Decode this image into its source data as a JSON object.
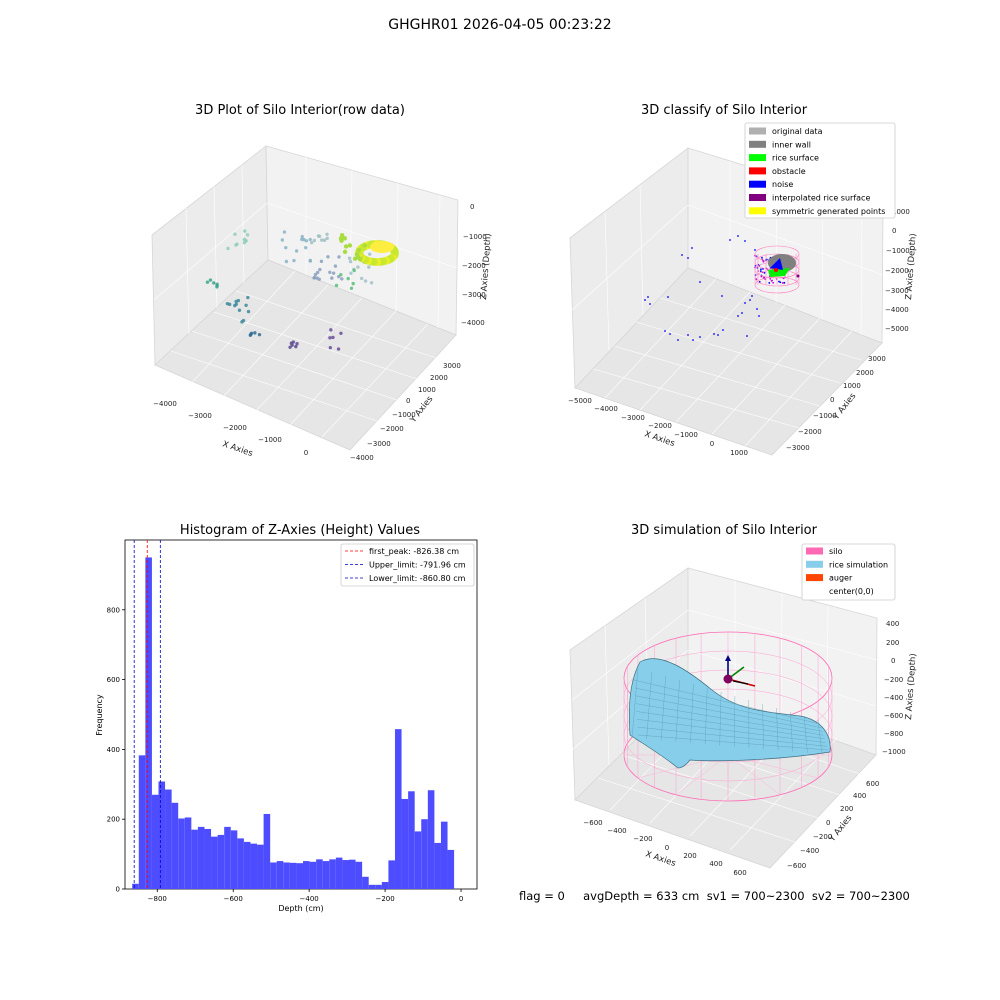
{
  "suptitle": "GHGHR01 2026-04-05 00:23:22",
  "footer": "flag = 0     avgDepth = 633 cm  sv1 = 700~2300  sv2 = 700~2300",
  "panels": {
    "raw": {
      "title": "3D Plot of Silo Interior(row data)",
      "x_label": "X Axies",
      "y_label": "Y Axies",
      "z_label": "Z Axies (Depth)",
      "x_ticks": [
        "−4000",
        "−3000",
        "−2000",
        "−1000",
        "0"
      ],
      "y_ticks": [
        "−4000",
        "−3000",
        "−2000",
        "−1000",
        "0",
        "1000",
        "2000",
        "3000"
      ],
      "z_ticks": [
        "−4000",
        "−3000",
        "−2000",
        "−1000",
        "0"
      ]
    },
    "classify": {
      "title": "3D classify of Silo Interior",
      "x_label": "X Axies",
      "y_label": "Y Axies",
      "z_label": "Z Axies (Depth)",
      "x_ticks": [
        "−5000",
        "−4000",
        "−3000",
        "−2000",
        "−1000",
        "0",
        "1000"
      ],
      "y_ticks": [
        "−3000",
        "−2000",
        "−1000",
        "0",
        "1000",
        "2000",
        "3000"
      ],
      "z_ticks": [
        "−5000",
        "−4000",
        "−3000",
        "−2000",
        "−1000",
        "0"
      ],
      "z_top_tick": "1000",
      "legend": [
        {
          "label": "original data",
          "color": "#b0b0b0"
        },
        {
          "label": "inner wall",
          "color": "#808080"
        },
        {
          "label": "rice surface",
          "color": "#00ff00"
        },
        {
          "label": "obstacle",
          "color": "#ff0000"
        },
        {
          "label": "noise",
          "color": "#0000ff"
        },
        {
          "label": "interpolated rice surface",
          "color": "#800080"
        },
        {
          "label": "symmetric generated points",
          "color": "#ffff00"
        }
      ]
    },
    "simulation": {
      "title": "3D simulation of Silo Interior",
      "x_label": "X Axies",
      "y_label": "Y Axies",
      "z_label": "Z Axies (Depth)",
      "x_ticks": [
        "−600",
        "−400",
        "−200",
        "0",
        "200",
        "400",
        "600"
      ],
      "y_ticks": [
        "−600",
        "−400",
        "−200",
        "0",
        "200",
        "400",
        "600"
      ],
      "z_ticks": [
        "−1000",
        "−800",
        "−600",
        "−400",
        "−200",
        "0",
        "200",
        "400"
      ],
      "legend": [
        {
          "label": "silo",
          "color": "#ff69b4"
        },
        {
          "label": "rice simulation",
          "color": "#87ceeb"
        },
        {
          "label": "auger",
          "color": "#ff4500"
        },
        {
          "label": "center(0,0)",
          "color": "#ffffff"
        }
      ]
    }
  },
  "chart_data": {
    "type": "bar",
    "title": "Histogram of Z-Axies (Height) Values",
    "xlabel": "Depth (cm)",
    "ylabel": "Frequency",
    "xlim": [
      -885,
      42
    ],
    "ylim": [
      0,
      1000
    ],
    "x_ticks": [
      -800,
      -600,
      -400,
      -200,
      0
    ],
    "x_tick_labels": [
      "−800",
      "−600",
      "−400",
      "−200",
      "0"
    ],
    "y_ticks": [
      0,
      200,
      400,
      600,
      800
    ],
    "y_tick_labels": [
      "0",
      "200",
      "400",
      "600",
      "800"
    ],
    "bin_start": -866,
    "bin_width": 17.3,
    "values": [
      15,
      383,
      950,
      270,
      308,
      285,
      247,
      202,
      205,
      170,
      178,
      172,
      150,
      155,
      178,
      168,
      145,
      135,
      130,
      127,
      215,
      76,
      80,
      76,
      75,
      74,
      80,
      78,
      85,
      80,
      85,
      90,
      83,
      84,
      78,
      35,
      12,
      12,
      20,
      82,
      458,
      258,
      280,
      165,
      200,
      283,
      132,
      193,
      112
    ],
    "lines": [
      {
        "label": "first_peak: -826.38 cm",
        "x": -826.38,
        "color": "#ff0000"
      },
      {
        "label": "Upper_limit: -791.96 cm",
        "x": -791.96,
        "color": "#0000cc"
      },
      {
        "label": "Lower_limit: -860.80 cm",
        "x": -860.8,
        "color": "#0000cc"
      }
    ],
    "legend_position": "top-right",
    "bar_color": "#4d4dff"
  }
}
